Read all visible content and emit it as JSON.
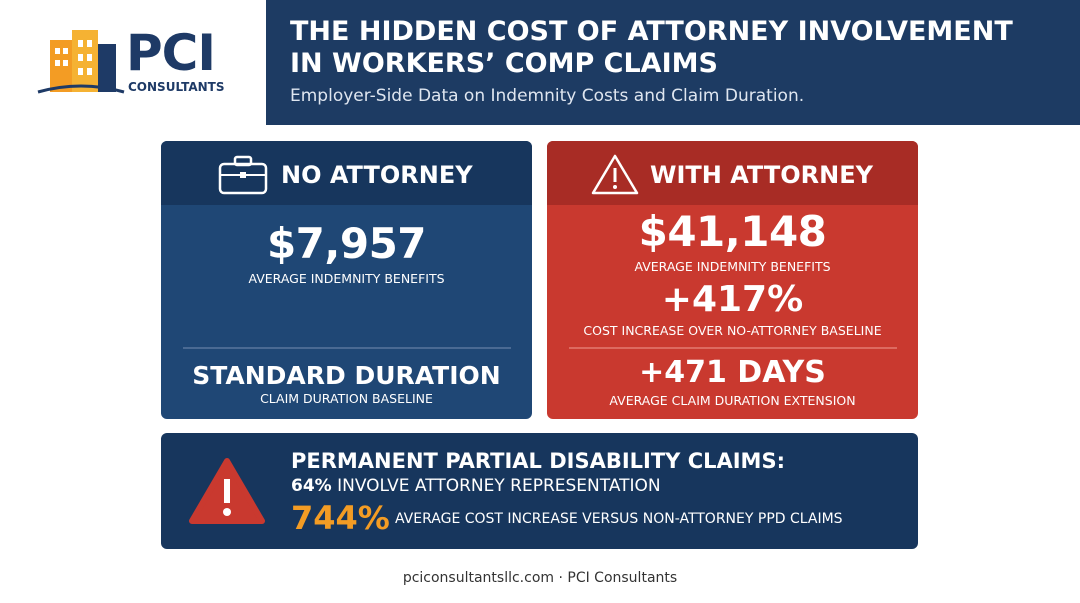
{
  "logo": {
    "mark": "PCI",
    "sub": "CONSULTANTS"
  },
  "header": {
    "title": "THE HIDDEN COST OF ATTORNEY INVOLVEMENT IN WORKERS’ COMP CLAIMS",
    "subtitle": "Employer-Side Data on Indemnity Costs and Claim Duration."
  },
  "no_attorney": {
    "heading": "NO ATTORNEY",
    "amount": "$7,957",
    "amount_label": "AVERAGE INDEMNITY BENEFITS",
    "duration": "STANDARD DURATION",
    "duration_label": "CLAIM DURATION BASELINE"
  },
  "with_attorney": {
    "heading": "WITH ATTORNEY",
    "amount": "$41,148",
    "amount_label": "AVERAGE INDEMNITY BENEFITS",
    "increase": "+417%",
    "increase_label": "COST INCREASE OVER NO-ATTORNEY BASELINE",
    "duration": "+471 DAYS",
    "duration_label": "AVERAGE CLAIM DURATION EXTENSION"
  },
  "ppd": {
    "heading": "PERMANENT PARTIAL DISABILITY CLAIMS:",
    "share": "64%",
    "share_label": "INVOLVE ATTORNEY REPRESENTATION",
    "increase": "744%",
    "increase_label": "AVERAGE COST INCREASE VERSUS NON-ATTORNEY PPD CLAIMS"
  },
  "footer": "pciconsultantsllc.com · PCI Consultants"
}
